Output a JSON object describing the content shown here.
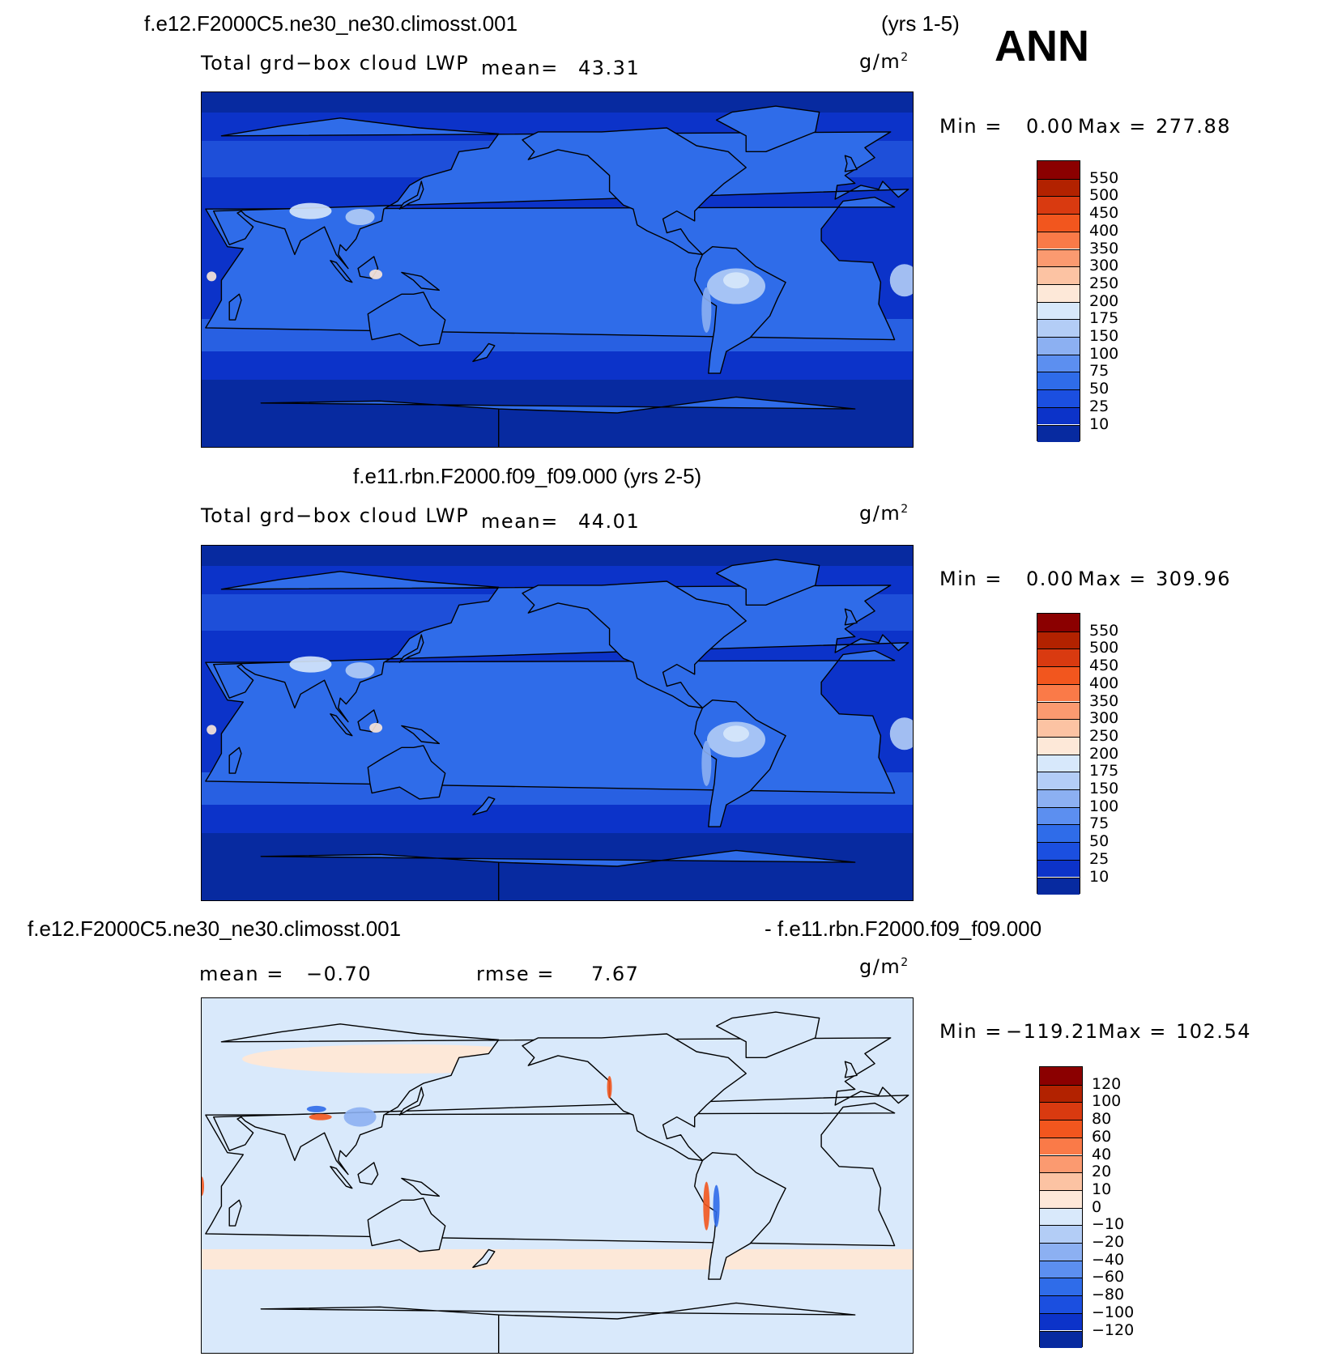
{
  "header": {
    "case_top": "f.e12.F2000C5.ne30_ne30.climosst.001",
    "years_top": "(yrs 1-5)",
    "season": "ANN",
    "case_mid": "f.e11.rbn.F2000.f09_f09.000 (yrs 2-5)",
    "diff_left": "f.e12.F2000C5.ne30_ne30.climosst.001",
    "diff_right": "- f.e11.rbn.F2000.f09_f09.000"
  },
  "panels": [
    {
      "variable": "Total grd−box cloud LWP",
      "mean_label": "mean=",
      "mean_value": "43.31",
      "units": "g/m",
      "units_sup": "2",
      "min_label": "Min  =",
      "min_value": "0.00",
      "max_label": "Max  =",
      "max_value": "277.88"
    },
    {
      "variable": "Total grd−box cloud LWP",
      "mean_label": "mean=",
      "mean_value": "44.01",
      "units": "g/m",
      "units_sup": "2",
      "min_label": "Min  =",
      "min_value": "0.00",
      "max_label": "Max  =",
      "max_value": "309.96"
    },
    {
      "mean_label": "mean  =",
      "mean_value": "−0.70",
      "rmse_label": "rmse  =",
      "rmse_value": "7.67",
      "units": "g/m",
      "units_sup": "2",
      "min_label": "Min  =",
      "min_value": "−119.21",
      "max_label": "Max  =",
      "max_value": "102.54"
    }
  ],
  "chart_data": [
    {
      "type": "heatmap",
      "title": "f.e12.F2000C5.ne30_ne30.climosst.001 (yrs 1-5)",
      "variable": "Total grd-box cloud LWP",
      "units": "g/m2",
      "mean": 43.31,
      "min": 0.0,
      "max": 277.88,
      "projection": "global cylindrical equidistant, centered on Pacific",
      "colorbar": {
        "levels": [
          "550",
          "500",
          "450",
          "400",
          "350",
          "300",
          "250",
          "200",
          "175",
          "150",
          "100",
          "75",
          "50",
          "25",
          "10"
        ],
        "colors": [
          "#8b0000",
          "#b22200",
          "#d93a10",
          "#f2561e",
          "#fa7a48",
          "#fb9a70",
          "#fcc3a3",
          "#fde8d8",
          "#d7e8fb",
          "#b3cdf6",
          "#8cb0f2",
          "#5c8ff0",
          "#2f6ce9",
          "#1b4fe0",
          "#0c33c9",
          "#072aa0"
        ]
      },
      "annotations": [
        "ANN"
      ]
    },
    {
      "type": "heatmap",
      "title": "f.e11.rbn.F2000.f09_f09.000 (yrs 2-5)",
      "variable": "Total grd-box cloud LWP",
      "units": "g/m2",
      "mean": 44.01,
      "min": 0.0,
      "max": 309.96,
      "colorbar": {
        "levels": [
          "550",
          "500",
          "450",
          "400",
          "350",
          "300",
          "250",
          "200",
          "175",
          "150",
          "100",
          "75",
          "50",
          "25",
          "10"
        ],
        "colors": [
          "#8b0000",
          "#b22200",
          "#d93a10",
          "#f2561e",
          "#fa7a48",
          "#fb9a70",
          "#fcc3a3",
          "#fde8d8",
          "#d7e8fb",
          "#b3cdf6",
          "#8cb0f2",
          "#5c8ff0",
          "#2f6ce9",
          "#1b4fe0",
          "#0c33c9",
          "#072aa0"
        ]
      }
    },
    {
      "type": "heatmap",
      "title": "f.e12.F2000C5.ne30_ne30.climosst.001 - f.e11.rbn.F2000.f09_f09.000",
      "units": "g/m2",
      "mean": -0.7,
      "rmse": 7.67,
      "min": -119.21,
      "max": 102.54,
      "colorbar": {
        "levels": [
          "120",
          "100",
          "80",
          "60",
          "40",
          "20",
          "10",
          "0",
          "−10",
          "−20",
          "−40",
          "−60",
          "−80",
          "−100",
          "−120"
        ],
        "colors": [
          "#8b0000",
          "#b22200",
          "#d93a10",
          "#f2561e",
          "#fa7a48",
          "#fb9a70",
          "#fcc3a3",
          "#fde8d8",
          "#d9e9fb",
          "#b3cdf6",
          "#8cb0f2",
          "#5c8ff0",
          "#2f6ce9",
          "#1b4fe0",
          "#0c33c9",
          "#072aa0"
        ]
      }
    }
  ]
}
